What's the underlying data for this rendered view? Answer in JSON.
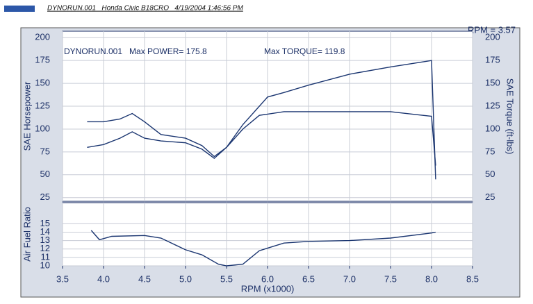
{
  "header": {
    "run": "DYNORUN.001   Honda Civic B18CRO   4/19/2004 1:46:56 PM",
    "rpm": "RPM = 3.57"
  },
  "chart_data": [
    {
      "type": "line",
      "ylabel": "SAE Horsepower",
      "y2label": "SAE Torque (ft-lbs)",
      "annotations": [
        "DYNORUN.001   Max POWER= 175.8",
        "Max TORQUE= 119.8"
      ],
      "xlim": [
        3.5,
        8.5
      ],
      "ylim": [
        21,
        207
      ],
      "y2lim": [
        21,
        207
      ],
      "yticks": [
        25,
        50,
        75,
        100,
        125,
        150,
        175,
        200
      ],
      "y2ticks": [
        25,
        50,
        75,
        100,
        125,
        150,
        175,
        200
      ],
      "grid": true,
      "series": [
        {
          "color": "#1a3570",
          "x": [
            3.8,
            4.0,
            4.2,
            4.35,
            4.5,
            4.7,
            5.0,
            5.2,
            5.35,
            5.5,
            5.7,
            6.0,
            6.2,
            6.5,
            7.0,
            7.5,
            8.0,
            8.05
          ],
          "values": [
            80,
            83,
            90,
            97,
            90,
            87,
            85,
            78,
            68,
            80,
            105,
            135,
            140,
            148,
            160,
            168,
            175,
            45
          ]
        },
        {
          "color": "#1a3570",
          "axis": "y2",
          "x": [
            3.8,
            4.0,
            4.2,
            4.35,
            4.5,
            4.7,
            5.0,
            5.2,
            5.35,
            5.5,
            5.7,
            5.9,
            6.2,
            6.5,
            7.0,
            7.5,
            7.8,
            8.0,
            8.05
          ],
          "values": [
            108,
            108,
            111,
            117,
            108,
            94,
            90,
            82,
            70,
            80,
            100,
            115,
            119,
            119,
            119,
            119,
            116,
            114,
            60
          ]
        }
      ]
    },
    {
      "type": "line",
      "ylabel": "Air Fuel Ratio",
      "xlabel": "RPM (x1000)",
      "xlim": [
        3.5,
        8.5
      ],
      "ylim": [
        10,
        17.5
      ],
      "xticks": [
        3.5,
        {
          "value": 4,
          "label": "4.0"
        },
        4.5,
        {
          "value": 5,
          "label": "5.0"
        },
        5.5,
        {
          "value": 6,
          "label": "6.0"
        },
        6.5,
        {
          "value": 7,
          "label": "7.0"
        },
        7.5,
        {
          "value": 8,
          "label": "8.0"
        },
        8.5
      ],
      "yticks": [
        10,
        11,
        12,
        13,
        14,
        15
      ],
      "grid": true,
      "series": [
        {
          "color": "#1a3570",
          "x": [
            3.85,
            3.95,
            4.1,
            4.5,
            4.7,
            5.0,
            5.2,
            5.4,
            5.5,
            5.7,
            5.9,
            6.2,
            6.5,
            7.0,
            7.5,
            8.0,
            8.05
          ],
          "values": [
            14.2,
            13.1,
            13.5,
            13.6,
            13.3,
            11.9,
            11.3,
            10.2,
            10.0,
            10.2,
            11.8,
            12.7,
            12.9,
            13.0,
            13.3,
            13.9,
            14.0
          ]
        }
      ]
    }
  ]
}
